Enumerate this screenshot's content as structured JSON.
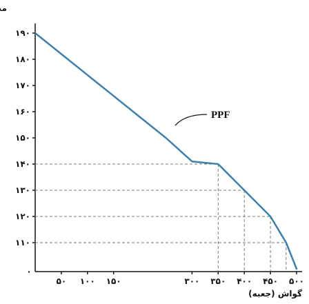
{
  "chart_data": {
    "type": "line",
    "title": "",
    "xlabel": "گواش (جعبه)",
    "ylabel": "مدادرنگی (جعبه)",
    "xlim": [
      0,
      500
    ],
    "ylim": [
      100,
      190
    ],
    "x_ticks": [
      50,
      100,
      150,
      300,
      350,
      400,
      450,
      500
    ],
    "x_tick_labels": [
      "۵۰",
      "۱۰۰",
      "۱۵۰",
      "۳۰۰",
      "۳۵۰",
      "۴۰۰",
      "۴۵۰",
      "۵۰۰"
    ],
    "y_ticks": [
      110,
      120,
      130,
      140,
      150,
      160,
      170,
      180,
      190
    ],
    "y_tick_labels": [
      "۱۱۰",
      "۱۲۰",
      "۱۳۰",
      "۱۴۰",
      "۱۵۰",
      "۱۶۰",
      "۱۷۰",
      "۱۸۰",
      "۱۹۰"
    ],
    "origin_label": "۰",
    "series": [
      {
        "name": "PPF",
        "x": [
          0,
          50,
          100,
          150,
          200,
          250,
          300,
          350,
          400,
          450,
          480,
          500
        ],
        "y": [
          190,
          182,
          174,
          166,
          158,
          150,
          141,
          140,
          130,
          120,
          110,
          100
        ]
      }
    ],
    "guides": [
      {
        "x": 350,
        "y": 140
      },
      {
        "x": 400,
        "y": 130
      },
      {
        "x": 450,
        "y": 120
      },
      {
        "x": 480,
        "y": 110
      }
    ],
    "colors": {
      "curve": "#3d7fa8",
      "axis": "#111111",
      "guide": "#777777"
    }
  }
}
